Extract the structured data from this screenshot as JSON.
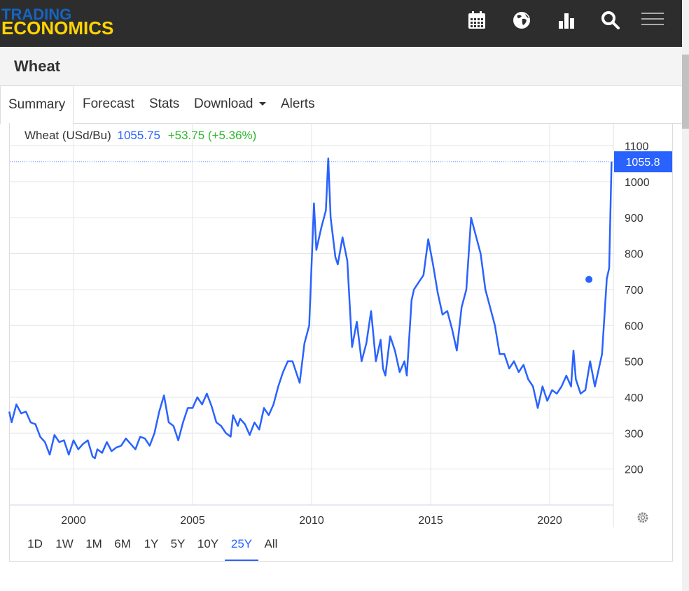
{
  "header": {
    "logo_line1": "TRADING",
    "logo_line2": "ECONOMICS",
    "icons": [
      "calendar-icon",
      "globe-icon",
      "bar-chart-icon",
      "search-icon",
      "menu-icon"
    ]
  },
  "page": {
    "title": "Wheat"
  },
  "tabs": [
    {
      "label": "Summary",
      "active": true
    },
    {
      "label": "Forecast",
      "active": false
    },
    {
      "label": "Stats",
      "active": false
    },
    {
      "label": "Download",
      "active": false,
      "dropdown": true
    },
    {
      "label": "Alerts",
      "active": false
    }
  ],
  "legend": {
    "name": "Wheat (USd/Bu)",
    "price": "1055.75",
    "change": "+53.75 (+5.36%)"
  },
  "price_tag": "1055.8",
  "ranges": [
    {
      "label": "1D",
      "active": false
    },
    {
      "label": "1W",
      "active": false
    },
    {
      "label": "1M",
      "active": false
    },
    {
      "label": "6M",
      "active": false
    },
    {
      "label": "1Y",
      "active": false
    },
    {
      "label": "5Y",
      "active": false
    },
    {
      "label": "10Y",
      "active": false
    },
    {
      "label": "25Y",
      "active": true
    },
    {
      "label": "All",
      "active": false
    }
  ],
  "colors": {
    "line": "#2962ff",
    "change": "#2eb82e",
    "header_bg": "#2d2d2d",
    "logo_blue": "#1565c0",
    "logo_yellow": "#ffd400"
  },
  "chart_data": {
    "type": "line",
    "title": "",
    "ylabel": "",
    "xlabel": "",
    "ylim": [
      100,
      1150
    ],
    "xlim": [
      1997.3,
      2022.75
    ],
    "y_ticks": [
      200,
      300,
      400,
      500,
      600,
      700,
      800,
      900,
      1000,
      1100
    ],
    "x_ticks": [
      2000,
      2005,
      2010,
      2015,
      2020
    ],
    "last_value": 1055.75,
    "marker": [
      2021.65,
      728
    ],
    "series": [
      {
        "points": [
          [
            1997.3,
            360
          ],
          [
            1997.4,
            330
          ],
          [
            1997.6,
            380
          ],
          [
            1997.8,
            355
          ],
          [
            1998.0,
            360
          ],
          [
            1998.2,
            330
          ],
          [
            1998.4,
            325
          ],
          [
            1998.6,
            290
          ],
          [
            1998.8,
            275
          ],
          [
            1999.0,
            240
          ],
          [
            1999.2,
            295
          ],
          [
            1999.4,
            275
          ],
          [
            1999.6,
            280
          ],
          [
            1999.8,
            240
          ],
          [
            2000.0,
            280
          ],
          [
            2000.2,
            255
          ],
          [
            2000.4,
            270
          ],
          [
            2000.6,
            280
          ],
          [
            2000.8,
            235
          ],
          [
            2000.9,
            230
          ],
          [
            2001.0,
            255
          ],
          [
            2001.2,
            245
          ],
          [
            2001.4,
            275
          ],
          [
            2001.6,
            250
          ],
          [
            2001.8,
            260
          ],
          [
            2002.0,
            265
          ],
          [
            2002.2,
            285
          ],
          [
            2002.4,
            270
          ],
          [
            2002.6,
            255
          ],
          [
            2002.8,
            290
          ],
          [
            2003.0,
            285
          ],
          [
            2003.2,
            265
          ],
          [
            2003.4,
            300
          ],
          [
            2003.6,
            360
          ],
          [
            2003.8,
            405
          ],
          [
            2004.0,
            330
          ],
          [
            2004.2,
            320
          ],
          [
            2004.4,
            280
          ],
          [
            2004.6,
            330
          ],
          [
            2004.8,
            370
          ],
          [
            2005.0,
            370
          ],
          [
            2005.2,
            400
          ],
          [
            2005.4,
            380
          ],
          [
            2005.6,
            410
          ],
          [
            2005.8,
            375
          ],
          [
            2006.0,
            330
          ],
          [
            2006.2,
            320
          ],
          [
            2006.4,
            300
          ],
          [
            2006.6,
            290
          ],
          [
            2006.7,
            350
          ],
          [
            2006.9,
            320
          ],
          [
            2007.0,
            340
          ],
          [
            2007.2,
            325
          ],
          [
            2007.4,
            295
          ],
          [
            2007.6,
            330
          ],
          [
            2007.8,
            310
          ],
          [
            2008.0,
            370
          ],
          [
            2008.2,
            350
          ],
          [
            2008.4,
            380
          ],
          [
            2008.6,
            430
          ],
          [
            2008.8,
            470
          ],
          [
            2009.0,
            500
          ],
          [
            2009.2,
            500
          ],
          [
            2009.4,
            460
          ],
          [
            2009.5,
            440
          ],
          [
            2009.7,
            550
          ],
          [
            2009.9,
            600
          ],
          [
            2010.1,
            940
          ],
          [
            2010.2,
            810
          ],
          [
            2010.4,
            870
          ],
          [
            2010.6,
            920
          ],
          [
            2010.7,
            1065
          ],
          [
            2010.8,
            900
          ],
          [
            2011.0,
            790
          ],
          [
            2011.1,
            770
          ],
          [
            2011.3,
            845
          ],
          [
            2011.5,
            780
          ],
          [
            2011.7,
            540
          ],
          [
            2011.9,
            610
          ],
          [
            2012.1,
            500
          ],
          [
            2012.3,
            550
          ],
          [
            2012.5,
            640
          ],
          [
            2012.7,
            500
          ],
          [
            2012.9,
            560
          ],
          [
            2013.0,
            480
          ],
          [
            2013.1,
            460
          ],
          [
            2013.3,
            570
          ],
          [
            2013.5,
            530
          ],
          [
            2013.7,
            470
          ],
          [
            2013.9,
            500
          ],
          [
            2014.0,
            460
          ],
          [
            2014.2,
            670
          ],
          [
            2014.3,
            700
          ],
          [
            2014.5,
            720
          ],
          [
            2014.7,
            740
          ],
          [
            2014.9,
            840
          ],
          [
            2015.1,
            770
          ],
          [
            2015.3,
            690
          ],
          [
            2015.5,
            630
          ],
          [
            2015.7,
            640
          ],
          [
            2015.9,
            590
          ],
          [
            2016.1,
            530
          ],
          [
            2016.3,
            650
          ],
          [
            2016.5,
            700
          ],
          [
            2016.7,
            900
          ],
          [
            2016.9,
            850
          ],
          [
            2017.1,
            800
          ],
          [
            2017.3,
            700
          ],
          [
            2017.5,
            650
          ],
          [
            2017.7,
            600
          ],
          [
            2017.9,
            520
          ],
          [
            2018.1,
            520
          ],
          [
            2018.3,
            480
          ],
          [
            2018.5,
            500
          ],
          [
            2018.7,
            470
          ],
          [
            2018.9,
            490
          ],
          [
            2019.1,
            450
          ],
          [
            2019.3,
            430
          ],
          [
            2019.5,
            370
          ],
          [
            2019.7,
            430
          ],
          [
            2019.9,
            390
          ],
          [
            2020.1,
            420
          ],
          [
            2020.3,
            410
          ],
          [
            2020.5,
            430
          ],
          [
            2020.7,
            460
          ],
          [
            2020.9,
            430
          ],
          [
            2021.0,
            530
          ],
          [
            2021.1,
            450
          ],
          [
            2021.3,
            410
          ],
          [
            2021.5,
            420
          ],
          [
            2021.7,
            500
          ],
          [
            2021.9,
            430
          ],
          [
            2022.0,
            460
          ],
          [
            2022.2,
            520
          ],
          [
            2022.4,
            730
          ],
          [
            2022.5,
            760
          ],
          [
            2022.6,
            1056
          ]
        ]
      }
    ]
  }
}
